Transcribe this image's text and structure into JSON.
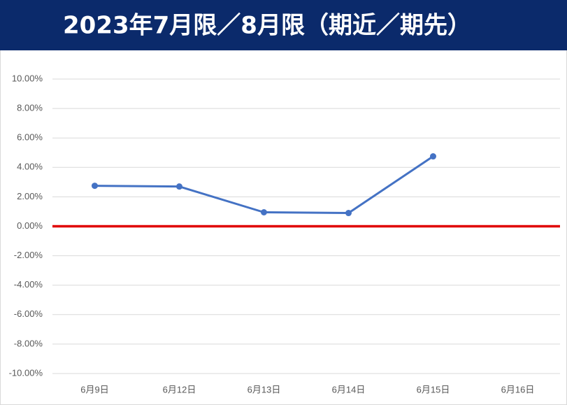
{
  "chart_data": {
    "type": "line",
    "title": "2023年7月限／8月限（期近／期先）",
    "categories": [
      "6月9日",
      "6月12日",
      "6月13日",
      "6月14日",
      "6月15日",
      "6月16日"
    ],
    "series": [
      {
        "name": "期近／期先",
        "color": "#4472c4",
        "values": [
          2.75,
          2.7,
          0.95,
          0.9,
          4.75,
          null
        ]
      }
    ],
    "ylim": [
      -10,
      10
    ],
    "yticks": [
      {
        "value": -10,
        "label": "-10.00%"
      },
      {
        "value": -8,
        "label": "-8.00%"
      },
      {
        "value": -6,
        "label": "-6.00%"
      },
      {
        "value": -4,
        "label": "-4.00%"
      },
      {
        "value": -2,
        "label": "-2.00%"
      },
      {
        "value": 0,
        "label": "0.00%"
      },
      {
        "value": 2,
        "label": "2.00%"
      },
      {
        "value": 4,
        "label": "4.00%"
      },
      {
        "value": 6,
        "label": "6.00%"
      },
      {
        "value": 8,
        "label": "8.00%"
      },
      {
        "value": 10,
        "label": "10.00%"
      }
    ],
    "grid": true,
    "zero_line_color": "#e00000"
  }
}
